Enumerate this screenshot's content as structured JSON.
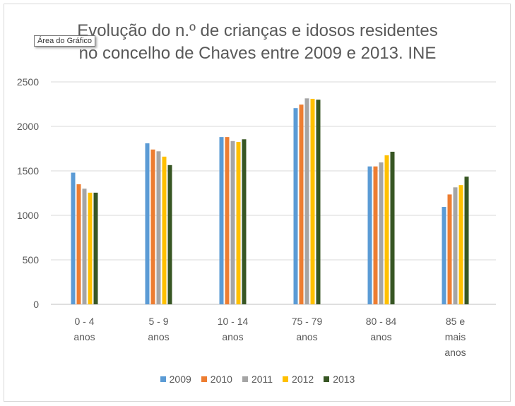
{
  "chart_data": {
    "type": "bar",
    "title": "Evolução do n.º de crianças e idosos residentes no concelho de Chaves entre 2009 e 2013. INE",
    "title_lines": [
      "Evolução do n.º de crianças e idosos residentes",
      "no concelho de Chaves entre 2009 e 2013. INE"
    ],
    "categories": [
      "0 - 4 anos",
      "5 - 9 anos",
      "10 - 14 anos",
      "75 - 79 anos",
      "80 - 84 anos",
      "85 e mais anos"
    ],
    "category_lines": [
      [
        "0 - 4",
        "anos"
      ],
      [
        "5 - 9",
        "anos"
      ],
      [
        "10 - 14",
        "anos"
      ],
      [
        "75 - 79",
        "anos"
      ],
      [
        "80 - 84",
        "anos"
      ],
      [
        "85 e",
        "mais",
        "anos"
      ]
    ],
    "series": [
      {
        "name": "2009",
        "color": "#5b9bd5",
        "values": [
          1480,
          1810,
          1880,
          2205,
          1550,
          1095
        ]
      },
      {
        "name": "2010",
        "color": "#ed7d31",
        "values": [
          1350,
          1740,
          1880,
          2245,
          1550,
          1235
        ]
      },
      {
        "name": "2011",
        "color": "#a5a5a5",
        "values": [
          1300,
          1720,
          1835,
          2315,
          1595,
          1315
        ]
      },
      {
        "name": "2012",
        "color": "#ffc000",
        "values": [
          1255,
          1660,
          1825,
          2310,
          1675,
          1340
        ]
      },
      {
        "name": "2013",
        "color": "#375623",
        "values": [
          1255,
          1565,
          1855,
          2300,
          1715,
          1435
        ]
      }
    ],
    "ylim": [
      0,
      2500
    ],
    "yticks": [
      0,
      500,
      1000,
      1500,
      2000,
      2500
    ],
    "grid": true,
    "legend": "bottom",
    "xlabel": "",
    "ylabel": ""
  },
  "tooltip": "Área do Gráfico"
}
